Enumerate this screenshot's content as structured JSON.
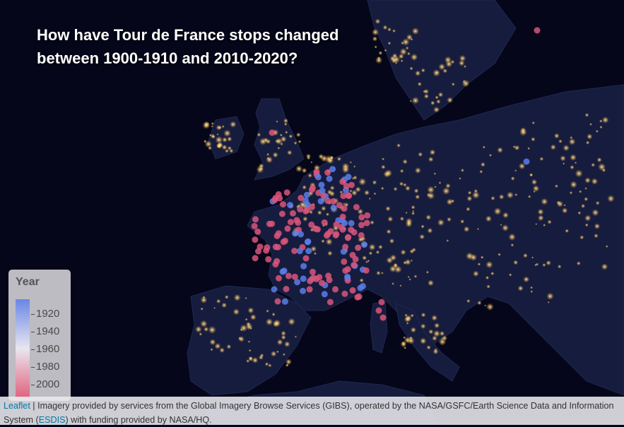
{
  "title": {
    "line1": "How have Tour de France stops changed",
    "line2": "between 1900-1910 and 2010-2020?"
  },
  "legend": {
    "title": "Year",
    "ticks": [
      "1920",
      "1940",
      "1960",
      "1980",
      "2000"
    ],
    "color_early": "#6a86e6",
    "color_mid": "#e8e6ee",
    "color_late": "#e0617e"
  },
  "attribution": {
    "leaflet_link": "Leaflet",
    "text_1": " | Imagery provided by services from the Global Imagery Browse Services (GIBS), operated by the NASA/GSFC/Earth Science Data and Information System (",
    "esdis_link": "ESDIS",
    "text_2": ") with funding provided by NASA/HQ."
  },
  "colors": {
    "ocean": "#05061a",
    "land": "#141a3a",
    "city_lights": "#ffd98a",
    "stop_early": "#5b7ee8",
    "stop_late": "#d9557a"
  }
}
